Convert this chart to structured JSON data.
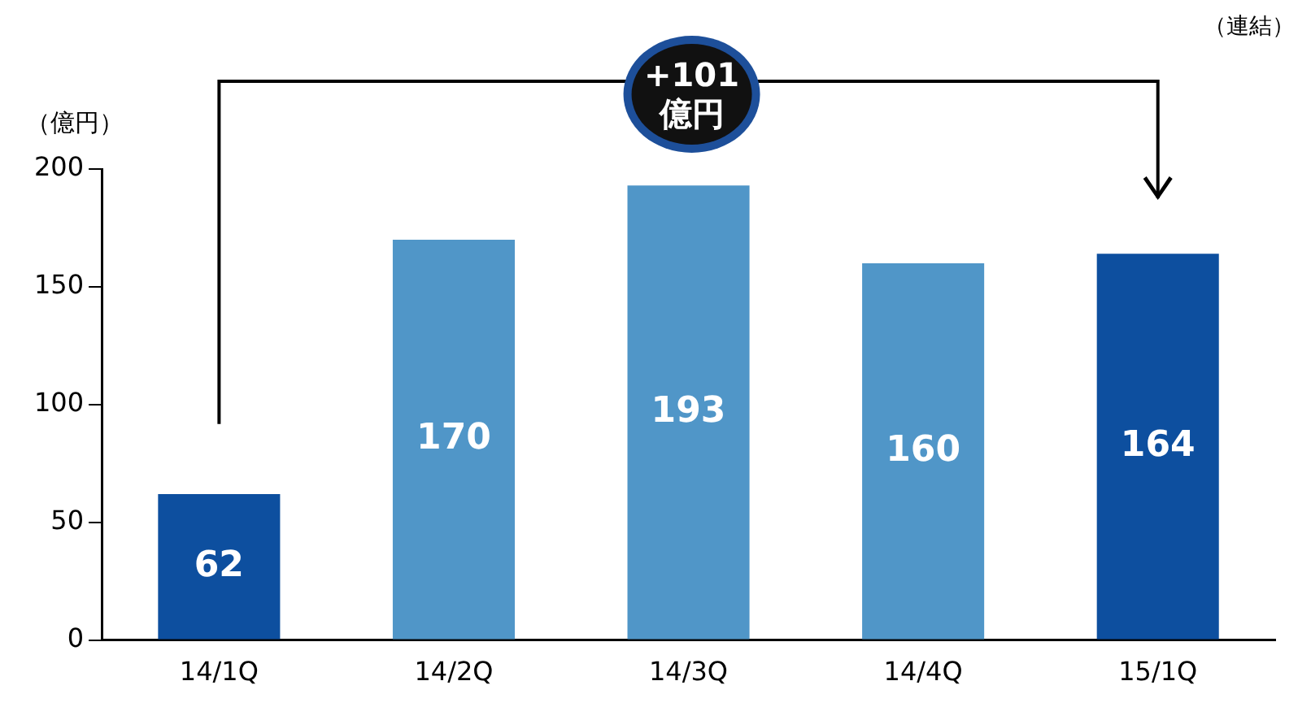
{
  "chart_data": {
    "type": "bar",
    "categories": [
      "14/1Q",
      "14/2Q",
      "14/3Q",
      "14/4Q",
      "15/1Q"
    ],
    "values": [
      62,
      170,
      193,
      160,
      164
    ],
    "colors": [
      "#0d4f9f",
      "#5096c8",
      "#5096c8",
      "#5096c8",
      "#0d4f9f"
    ],
    "ylabel": "（億円）",
    "ylim": [
      0,
      200
    ],
    "yticks": [
      0,
      50,
      100,
      150,
      200
    ],
    "grid": false,
    "legend": false,
    "data_labels": true,
    "annotations": [
      "（連結）",
      "+101\n億円"
    ]
  }
}
